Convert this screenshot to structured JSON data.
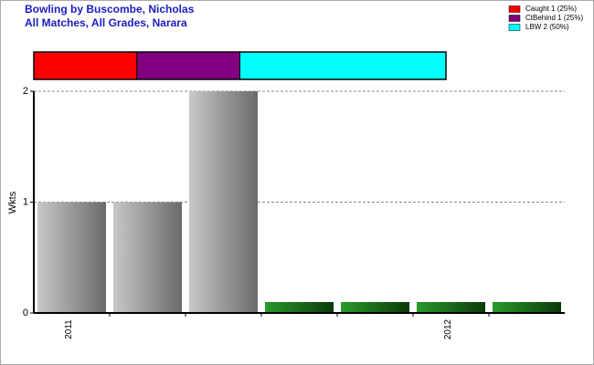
{
  "chart_data": [
    {
      "type": "bar",
      "title": "Bowling by Buscombe, Nicholas",
      "subtitle": "All Matches, All Grades, Narara",
      "y_label": "Wkts",
      "categories": [
        "2011",
        null,
        null,
        null,
        null,
        "2012",
        null
      ],
      "values": [
        1,
        1,
        2,
        0,
        0,
        0,
        0
      ],
      "color": "#9a9a9a",
      "zero_color": "#1a7a1a",
      "ylim": [
        0,
        2
      ],
      "yticks": [
        0,
        1,
        2
      ],
      "grid": true
    },
    {
      "type": "stacked-bar",
      "legend": "top-right",
      "xlim": [
        0,
        100
      ],
      "series": [
        {
          "name": "Caught 1 (25%)",
          "color": "#ff0000",
          "values": [
            25
          ]
        },
        {
          "name": "CtBehind 1 (25%)",
          "color": "#800080",
          "values": [
            25
          ]
        },
        {
          "name": "LBW 2 (50%)",
          "color": "#00ffff",
          "values": [
            50
          ]
        }
      ]
    }
  ]
}
